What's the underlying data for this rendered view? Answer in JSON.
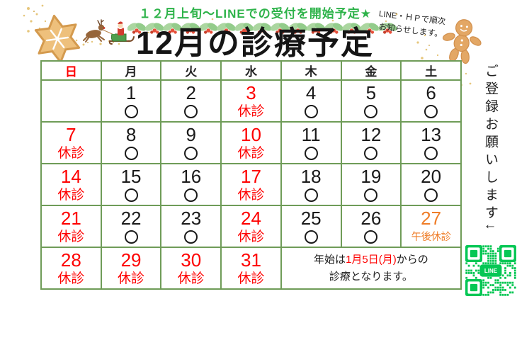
{
  "announcement": "１２月上旬～LINEでの受付を開始予定★",
  "top_right_note": {
    "line1": "LINE・ＨＰで順次",
    "line2": "お知らせします。"
  },
  "title": "12月の診療予定",
  "side_note": "ご登録お願いします↓",
  "qr_label": "LINE",
  "calendar": {
    "headers": [
      "日",
      "月",
      "火",
      "水",
      "木",
      "金",
      "土"
    ],
    "weeks": [
      [
        {
          "date": "",
          "status": "",
          "color": "black"
        },
        {
          "date": "1",
          "status": "〇",
          "color": "black"
        },
        {
          "date": "2",
          "status": "〇",
          "color": "black"
        },
        {
          "date": "3",
          "status": "休診",
          "color": "red"
        },
        {
          "date": "4",
          "status": "〇",
          "color": "black"
        },
        {
          "date": "5",
          "status": "〇",
          "color": "black"
        },
        {
          "date": "6",
          "status": "〇",
          "color": "black"
        }
      ],
      [
        {
          "date": "7",
          "status": "休診",
          "color": "red"
        },
        {
          "date": "8",
          "status": "〇",
          "color": "black"
        },
        {
          "date": "9",
          "status": "〇",
          "color": "black"
        },
        {
          "date": "10",
          "status": "休診",
          "color": "red"
        },
        {
          "date": "11",
          "status": "〇",
          "color": "black"
        },
        {
          "date": "12",
          "status": "〇",
          "color": "black"
        },
        {
          "date": "13",
          "status": "〇",
          "color": "black"
        }
      ],
      [
        {
          "date": "14",
          "status": "休診",
          "color": "red"
        },
        {
          "date": "15",
          "status": "〇",
          "color": "black"
        },
        {
          "date": "16",
          "status": "〇",
          "color": "black"
        },
        {
          "date": "17",
          "status": "休診",
          "color": "red"
        },
        {
          "date": "18",
          "status": "〇",
          "color": "black"
        },
        {
          "date": "19",
          "status": "〇",
          "color": "black"
        },
        {
          "date": "20",
          "status": "〇",
          "color": "black"
        }
      ],
      [
        {
          "date": "21",
          "status": "休診",
          "color": "red"
        },
        {
          "date": "22",
          "status": "〇",
          "color": "black"
        },
        {
          "date": "23",
          "status": "〇",
          "color": "black"
        },
        {
          "date": "24",
          "status": "休診",
          "color": "red"
        },
        {
          "date": "25",
          "status": "〇",
          "color": "black"
        },
        {
          "date": "26",
          "status": "〇",
          "color": "black"
        },
        {
          "date": "27",
          "status": "午後休診",
          "color": "orange"
        }
      ],
      [
        {
          "date": "28",
          "status": "休診",
          "color": "red"
        },
        {
          "date": "29",
          "status": "休診",
          "color": "red"
        },
        {
          "date": "30",
          "status": "休診",
          "color": "red"
        },
        {
          "date": "31",
          "status": "休診",
          "color": "red"
        },
        {
          "note": true
        }
      ]
    ],
    "year_start_note": {
      "segments": [
        {
          "text": "年始は",
          "color": "black"
        },
        {
          "text": "1月5日(月)",
          "color": "red"
        },
        {
          "text": "からの",
          "color": "black"
        }
      ],
      "line2": "診療となります。"
    }
  },
  "colors": {
    "table_border": "#6f9c58",
    "red": "#fe0000",
    "orange": "#ef7d28",
    "announcement_green": "#2eb34a",
    "qr_green": "#06c755",
    "ink": "#1a1a1a"
  }
}
